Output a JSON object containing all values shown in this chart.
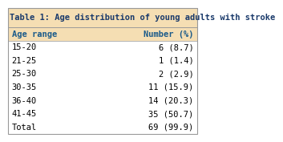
{
  "title": "Table 1: Age distribution of young adults with stroke",
  "title_color": "#1a3a6b",
  "title_bg_color": "#f5deb3",
  "header_bg_color": "#f5deb3",
  "header_text_color": "#1a5a8a",
  "col1_header": "Age range",
  "col2_header": "Number (%)",
  "rows": [
    [
      "15-20",
      "6 (8.7)"
    ],
    [
      "21-25",
      "1 (1.4)"
    ],
    [
      "25-30",
      "2 (2.9)"
    ],
    [
      "30-35",
      "11 (15.9)"
    ],
    [
      "36-40",
      "14 (20.3)"
    ],
    [
      "41-45",
      "35 (50.7)"
    ],
    [
      "Total",
      "69 (99.9)"
    ]
  ],
  "row_text_color": "#000000",
  "row_bg_color": "#ffffff",
  "border_color": "#999999",
  "title_fontsize": 7.5,
  "header_fontsize": 7.5,
  "row_fontsize": 7.5,
  "fig_width": 3.21,
  "fig_height": 1.57
}
